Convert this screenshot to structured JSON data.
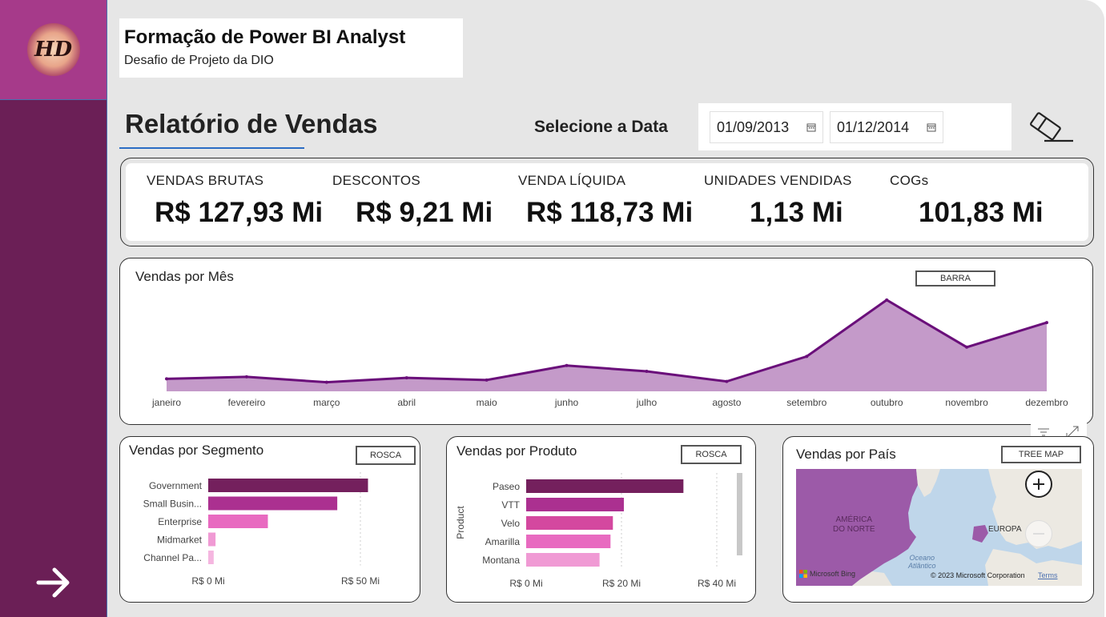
{
  "header": {
    "title": "Formação de Power BI Analyst",
    "subtitle": "Desafio de Projeto da DIO"
  },
  "logo": {
    "text": "HD"
  },
  "report_title": "Relatório de Vendas",
  "date_filter": {
    "label": "Selecione a Data",
    "start": "01/09/2013",
    "end": "01/12/2014"
  },
  "kpis": [
    {
      "label": "VENDAS BRUTAS",
      "value": "R$ 127,93 Mi"
    },
    {
      "label": "DESCONTOS",
      "value": "R$ 9,21 Mi"
    },
    {
      "label": "VENDA LÍQUIDA",
      "value": "R$ 118,73 Mi"
    },
    {
      "label": "UNIDADES VENDIDAS",
      "value": "1,13 Mi"
    },
    {
      "label": "COGs",
      "value": "101,83 Mi"
    }
  ],
  "line_chart": {
    "title": "Vendas por Mês",
    "button": "BARRA"
  },
  "segment_chart": {
    "title": "Vendas por Segmento",
    "button": "ROSCA"
  },
  "product_chart": {
    "title": "Vendas por Produto",
    "button": "ROSCA",
    "ylabel": "Product"
  },
  "country_map": {
    "title": "Vendas por País",
    "button": "TREE MAP",
    "labels": {
      "na": "AMÉRICA DO NORTE",
      "na1": "AMÉRICA",
      "na2": "DO NORTE",
      "eu": "EUROPA",
      "ocean1": "Oceano",
      "ocean2": "Atlântico"
    },
    "attribution": "© 2023 Microsoft Corporation",
    "terms": "Terms",
    "brand": "Microsoft Bing"
  },
  "chart_data": [
    {
      "type": "area",
      "title": "Vendas por Mês",
      "categories": [
        "janeiro",
        "fevereiro",
        "março",
        "abril",
        "maio",
        "junho",
        "julho",
        "agosto",
        "setembro",
        "outubro",
        "novembro",
        "dezembro"
      ],
      "values": [
        6.2,
        7.2,
        4.5,
        6.7,
        5.6,
        12.8,
        9.9,
        4.9,
        17.3,
        45.3,
        21.9,
        34.1
      ],
      "ylim": [
        0,
        50
      ],
      "grid": false
    },
    {
      "type": "bar",
      "title": "Vendas por Segmento",
      "categories": [
        "Government",
        "Small Busin...",
        "Enterprise",
        "Midmarket",
        "Channel Pa..."
      ],
      "values": [
        52.5,
        42.4,
        19.6,
        2.4,
        1.8
      ],
      "colors": [
        "#74205d",
        "#ab3090",
        "#e86ac0",
        "#f09ad4",
        "#f5b6e0"
      ],
      "xticks": [
        "R$ 0 Mi",
        "R$ 50 Mi"
      ],
      "xlim": [
        0,
        50
      ]
    },
    {
      "type": "bar",
      "title": "Vendas por Produto",
      "categories": [
        "Paseo",
        "VTT",
        "Velo",
        "Amarilla",
        "Montana"
      ],
      "values": [
        33.0,
        20.5,
        18.2,
        17.7,
        15.4
      ],
      "colors": [
        "#74205d",
        "#ab3090",
        "#d4489f",
        "#e86ac0",
        "#f09ad4"
      ],
      "xticks": [
        "R$ 0 Mi",
        "R$ 20 Mi",
        "R$ 40 Mi"
      ],
      "xlim": [
        0,
        40
      ],
      "ylabel": "Product"
    }
  ],
  "colors": {
    "sidebar": "#6b1f56",
    "logo_bg": "#a63a8a",
    "accent_line": "#2b6cc4",
    "line_stroke": "#6a0f7a",
    "area_fill": "#c49ac9",
    "background": "#e6e6e6"
  },
  "icons": {
    "next": "arrow-right-icon",
    "calendar": "calendar-icon",
    "eraser": "eraser-icon",
    "filter": "filter-icon",
    "expand": "focus-mode-icon",
    "zoom_in": "zoom-in-icon",
    "zoom_out": "zoom-out-icon"
  }
}
